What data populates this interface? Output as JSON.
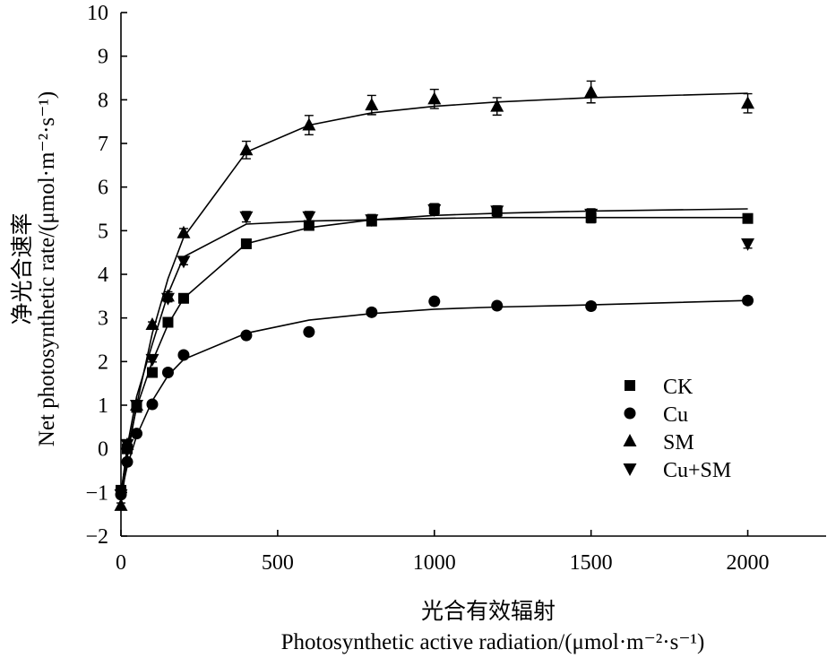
{
  "chart_data": {
    "type": "scatter",
    "xlabel_cn": "光合有效辐射",
    "xlabel_en": "Photosynthetic active radiation/(μmol·m⁻²·s⁻¹)",
    "ylabel_cn": "净光合速率",
    "ylabel_en": "Net photosynthetic rate/(μmol·m⁻²·s⁻¹)",
    "xlim": [
      0,
      2250
    ],
    "ylim": [
      -2,
      10
    ],
    "x_ticks": [
      0,
      500,
      1000,
      1500,
      2000
    ],
    "x_tick_labels": [
      "0",
      "500",
      "1000",
      "1500",
      "2000"
    ],
    "y_ticks": [
      -2,
      -1,
      0,
      1,
      2,
      3,
      4,
      5,
      6,
      7,
      8,
      9,
      10
    ],
    "y_tick_labels": [
      "−2",
      "−1",
      "0",
      "1",
      "2",
      "3",
      "4",
      "5",
      "6",
      "7",
      "8",
      "9",
      "10"
    ],
    "legend_position": "bottom-right",
    "grid": false,
    "x": [
      0,
      20,
      50,
      100,
      150,
      200,
      400,
      600,
      800,
      1000,
      1200,
      1500,
      2000
    ],
    "series": [
      {
        "name": "CK",
        "marker": "square",
        "values": [
          -0.95,
          0.0,
          0.95,
          1.75,
          2.9,
          3.45,
          4.7,
          5.12,
          5.22,
          5.5,
          5.45,
          5.3,
          5.28
        ],
        "errors": [
          0.08,
          0.08,
          0.08,
          0.08,
          0.08,
          0.08,
          0.1,
          0.1,
          0.1,
          0.12,
          0.1,
          0.12,
          0.1
        ],
        "fit": [
          -1.0,
          -0.05,
          0.95,
          2.0,
          2.85,
          3.45,
          4.7,
          5.07,
          5.25,
          5.35,
          5.4,
          5.45,
          5.5
        ]
      },
      {
        "name": "Cu",
        "marker": "circle",
        "values": [
          -1.05,
          -0.3,
          0.35,
          1.02,
          1.75,
          2.15,
          2.6,
          2.68,
          3.13,
          3.38,
          3.28,
          3.27,
          3.4
        ],
        "errors": [
          0.06,
          0.06,
          0.06,
          0.06,
          0.06,
          0.06,
          0.06,
          0.06,
          0.08,
          0.08,
          0.08,
          0.08,
          0.08
        ],
        "fit": [
          -1.05,
          -0.4,
          0.3,
          1.1,
          1.68,
          2.05,
          2.65,
          2.95,
          3.1,
          3.2,
          3.25,
          3.3,
          3.4
        ]
      },
      {
        "name": "SM",
        "marker": "triangle-up",
        "values": [
          -1.3,
          0.1,
          1.0,
          2.85,
          3.5,
          4.95,
          6.85,
          7.42,
          7.88,
          8.02,
          7.85,
          8.18,
          7.92
        ],
        "errors": [
          0.06,
          0.06,
          0.06,
          0.06,
          0.1,
          0.1,
          0.2,
          0.22,
          0.22,
          0.22,
          0.2,
          0.25,
          0.22
        ],
        "fit": [
          -1.3,
          -0.2,
          1.0,
          2.65,
          3.9,
          4.85,
          6.8,
          7.42,
          7.7,
          7.85,
          7.95,
          8.05,
          8.15
        ]
      },
      {
        "name": "Cu+SM",
        "marker": "triangle-down",
        "values": [
          -1.05,
          0.1,
          1.0,
          2.05,
          3.45,
          4.3,
          5.32,
          5.32,
          5.25,
          5.48,
          5.45,
          5.38,
          4.7
        ],
        "errors": [
          0.06,
          0.06,
          0.06,
          0.06,
          0.08,
          0.08,
          0.12,
          0.12,
          0.12,
          0.12,
          0.12,
          0.12,
          0.1
        ],
        "fit": [
          -1.05,
          0.05,
          1.2,
          2.4,
          3.55,
          4.4,
          5.15,
          5.22,
          5.25,
          5.28,
          5.3,
          5.3,
          5.3
        ]
      }
    ]
  }
}
